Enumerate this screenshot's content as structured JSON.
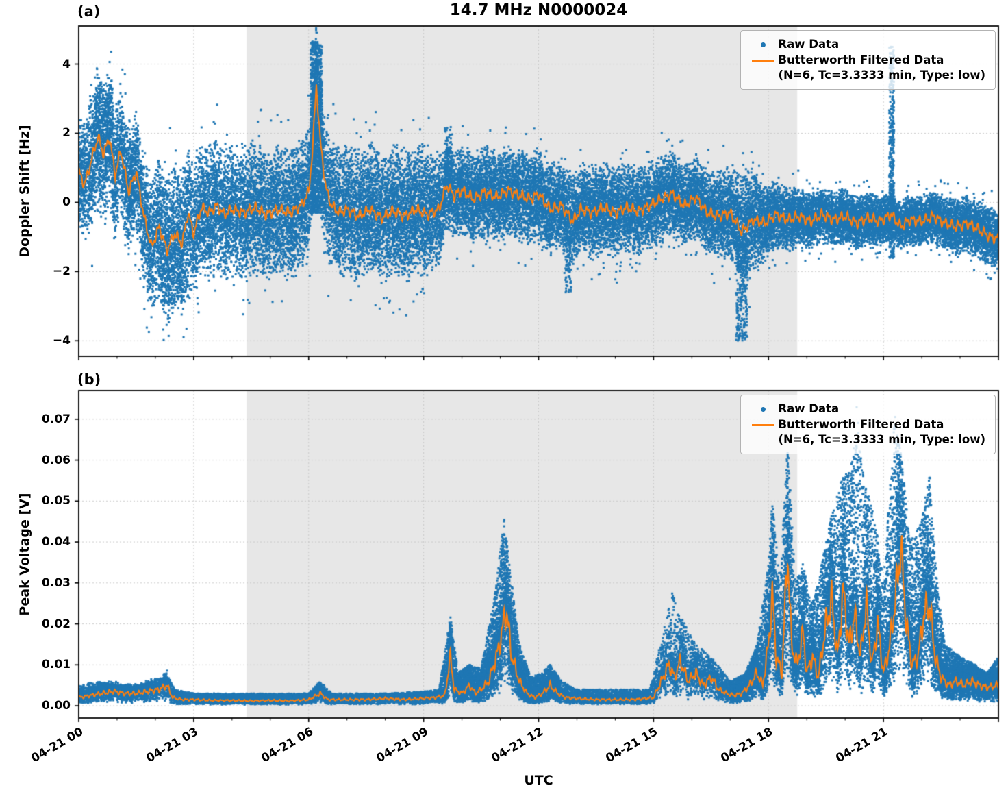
{
  "figure": {
    "panel_a_label": "(a)",
    "panel_b_label": "(b)",
    "legend": {
      "raw_label": "Raw Data",
      "filtered_label": "Butterworth Filtered Data",
      "filtered_sublabel": "(N=6, Tc=3.3333 min, Type: low)"
    },
    "colors": {
      "raw": "#1f77b4",
      "filtered": "#ff7f0e",
      "shade": "#e7e7e7",
      "frame": "#000000"
    }
  },
  "chart_data": [
    {
      "panel": "a",
      "type": "scatter",
      "title": "14.7 MHz N0000024",
      "ylabel": "Doppler Shift [Hz]",
      "ylim": [
        -4.45,
        5.1
      ],
      "yticks": [
        -4,
        -2,
        0,
        2,
        4
      ],
      "ytick_labels": [
        "−4",
        "−2",
        "0",
        "2",
        "4"
      ],
      "x_hours_lim": [
        0,
        24
      ],
      "xticks_hours": [
        0,
        3,
        6,
        9,
        12,
        15,
        18,
        21
      ],
      "xtick_labels": [],
      "shaded_hours": [
        4.38,
        18.75
      ],
      "legend_position": "upper right",
      "series_names": [
        "Raw Data",
        "Butterworth Filtered Data (N=6, Tc=3.3333 min, Type: low)"
      ],
      "filtered": {
        "x": [
          0,
          0.15,
          0.3,
          0.5,
          0.65,
          0.8,
          0.95,
          1.1,
          1.3,
          1.5,
          1.7,
          1.9,
          2.1,
          2.3,
          2.5,
          2.7,
          2.85,
          3.0,
          3.2,
          3.4,
          3.6,
          3.8,
          4.0,
          4.3,
          4.6,
          4.9,
          5.2,
          5.5,
          5.8,
          6.0,
          6.1,
          6.2,
          6.3,
          6.45,
          6.6,
          6.8,
          7.0,
          7.3,
          7.6,
          7.9,
          8.2,
          8.5,
          8.8,
          9.1,
          9.4,
          9.6,
          9.8,
          10.0,
          10.3,
          10.6,
          10.9,
          11.2,
          11.5,
          11.8,
          12.0,
          12.3,
          12.6,
          12.9,
          13.1,
          13.4,
          13.7,
          14.0,
          14.3,
          14.6,
          14.9,
          15.2,
          15.5,
          15.8,
          16.1,
          16.4,
          16.7,
          17.0,
          17.3,
          17.6,
          17.9,
          18.2,
          18.5,
          18.8,
          19.1,
          19.4,
          19.7,
          20.0,
          20.3,
          20.6,
          20.9,
          21.2,
          21.45,
          21.7,
          22.0,
          22.3,
          22.6,
          22.9,
          23.2,
          23.5,
          23.8,
          24.0
        ],
        "y": [
          0.9,
          0.5,
          1.1,
          1.9,
          1.4,
          1.9,
          0.8,
          1.5,
          0.3,
          0.9,
          -0.4,
          -1.3,
          -0.7,
          -1.4,
          -0.9,
          -1.2,
          -0.3,
          -0.9,
          -0.15,
          -0.3,
          -0.1,
          -0.35,
          -0.2,
          -0.3,
          -0.15,
          -0.35,
          -0.2,
          -0.3,
          -0.1,
          0.3,
          1.5,
          3.4,
          1.8,
          0.4,
          -0.1,
          -0.3,
          -0.2,
          -0.4,
          -0.2,
          -0.45,
          -0.25,
          -0.4,
          -0.2,
          -0.35,
          -0.2,
          0.5,
          0.2,
          0.35,
          0.1,
          0.3,
          0.15,
          0.35,
          0.2,
          0.1,
          0.25,
          -0.2,
          -0.1,
          -0.55,
          -0.2,
          -0.3,
          -0.15,
          -0.3,
          -0.15,
          -0.25,
          -0.1,
          0.1,
          0.25,
          -0.1,
          0.15,
          -0.3,
          -0.4,
          -0.3,
          -0.85,
          -0.5,
          -0.6,
          -0.35,
          -0.5,
          -0.4,
          -0.55,
          -0.35,
          -0.5,
          -0.4,
          -0.6,
          -0.45,
          -0.55,
          -0.35,
          -0.7,
          -0.5,
          -0.55,
          -0.4,
          -0.6,
          -0.7,
          -0.6,
          -0.8,
          -1.0,
          -1.05
        ]
      },
      "raw_envelope": {
        "x": [
          0,
          0.5,
          1,
          1.5,
          2,
          2.5,
          3,
          4,
          5,
          6,
          6.2,
          7,
          8,
          9,
          9.6,
          10,
          11,
          12,
          13,
          14,
          15,
          16,
          17,
          17.3,
          18,
          19,
          20,
          21,
          22,
          23,
          24
        ],
        "spread": [
          1.1,
          1.5,
          1.3,
          1.2,
          1.4,
          1.5,
          1.3,
          1.3,
          1.3,
          1.3,
          1.3,
          1.3,
          1.3,
          1.3,
          0.9,
          0.9,
          0.9,
          0.9,
          0.9,
          0.9,
          0.85,
          0.8,
          0.9,
          1.2,
          0.7,
          0.55,
          0.55,
          0.5,
          0.5,
          0.55,
          0.6
        ]
      },
      "raw_columns": [
        [
          0.4,
          0.9,
          1.5,
          3.4,
          200
        ],
        [
          2.1,
          2.9,
          -2.9,
          -1.8,
          150
        ],
        [
          6.05,
          6.35,
          -0.3,
          4.65,
          1200
        ],
        [
          9.55,
          9.75,
          0.5,
          2.2,
          100
        ],
        [
          12.7,
          12.85,
          -2.6,
          -1.0,
          80
        ],
        [
          17.15,
          17.45,
          -4.0,
          -1.0,
          250
        ],
        [
          21.15,
          21.28,
          -1.6,
          4.5,
          400
        ]
      ]
    },
    {
      "panel": "b",
      "type": "scatter",
      "xlabel": "UTC",
      "ylabel": "Peak Voltage [V]",
      "ylim": [
        -0.003,
        0.077
      ],
      "yticks": [
        0,
        0.01,
        0.02,
        0.03,
        0.04,
        0.05,
        0.06,
        0.07
      ],
      "ytick_labels": [
        "0.00",
        "0.01",
        "0.02",
        "0.03",
        "0.04",
        "0.05",
        "0.06",
        "0.07"
      ],
      "x_hours_lim": [
        0,
        24
      ],
      "xticks_hours": [
        0,
        3,
        6,
        9,
        12,
        15,
        18,
        21
      ],
      "xtick_labels": [
        "04-21 00",
        "04-21 03",
        "04-21 06",
        "04-21 09",
        "04-21 12",
        "04-21 15",
        "04-21 18",
        "04-21 21"
      ],
      "shaded_hours": [
        4.38,
        18.75
      ],
      "legend_position": "upper right",
      "series_names": [
        "Raw Data",
        "Butterworth Filtered Data (N=6, Tc=3.3333 min, Type: low)"
      ],
      "filtered": {
        "x": [
          0,
          0.3,
          0.6,
          0.9,
          1.2,
          1.5,
          1.8,
          2.1,
          2.3,
          2.45,
          2.7,
          3.0,
          3.5,
          4.0,
          4.5,
          5.0,
          5.5,
          6.0,
          6.3,
          6.5,
          7.0,
          7.5,
          8.0,
          8.5,
          9.0,
          9.3,
          9.55,
          9.7,
          9.8,
          10.0,
          10.2,
          10.35,
          10.5,
          10.7,
          10.9,
          11.05,
          11.15,
          11.3,
          11.5,
          11.7,
          11.9,
          12.1,
          12.3,
          12.5,
          12.7,
          13.0,
          13.5,
          14.0,
          14.5,
          15.0,
          15.2,
          15.4,
          15.55,
          15.7,
          15.9,
          16.1,
          16.3,
          16.5,
          16.7,
          16.9,
          17.1,
          17.3,
          17.5,
          17.7,
          17.85,
          18.0,
          18.1,
          18.2,
          18.35,
          18.5,
          18.6,
          18.75,
          18.9,
          19.0,
          19.15,
          19.3,
          19.5,
          19.65,
          19.8,
          19.95,
          20.1,
          20.25,
          20.4,
          20.55,
          20.7,
          20.85,
          21.0,
          21.15,
          21.3,
          21.45,
          21.6,
          21.75,
          21.9,
          22.05,
          22.2,
          22.35,
          22.5,
          22.7,
          22.9,
          23.1,
          23.3,
          23.5,
          23.7,
          24.0
        ],
        "y": [
          0.002,
          0.0025,
          0.003,
          0.0035,
          0.003,
          0.003,
          0.0035,
          0.004,
          0.005,
          0.002,
          0.0015,
          0.0015,
          0.0013,
          0.0013,
          0.0012,
          0.0013,
          0.0012,
          0.0015,
          0.003,
          0.0015,
          0.0015,
          0.0015,
          0.0018,
          0.0015,
          0.0018,
          0.002,
          0.0025,
          0.012,
          0.004,
          0.003,
          0.005,
          0.003,
          0.004,
          0.006,
          0.012,
          0.018,
          0.024,
          0.012,
          0.006,
          0.003,
          0.002,
          0.003,
          0.005,
          0.003,
          0.002,
          0.0018,
          0.0015,
          0.0015,
          0.0015,
          0.002,
          0.006,
          0.01,
          0.007,
          0.011,
          0.006,
          0.008,
          0.005,
          0.007,
          0.004,
          0.003,
          0.0025,
          0.003,
          0.005,
          0.008,
          0.005,
          0.015,
          0.027,
          0.012,
          0.008,
          0.038,
          0.015,
          0.01,
          0.018,
          0.008,
          0.012,
          0.007,
          0.02,
          0.026,
          0.012,
          0.028,
          0.015,
          0.022,
          0.012,
          0.025,
          0.01,
          0.02,
          0.008,
          0.014,
          0.025,
          0.039,
          0.02,
          0.01,
          0.012,
          0.022,
          0.025,
          0.012,
          0.007,
          0.005,
          0.006,
          0.005,
          0.006,
          0.005,
          0.0045,
          0.005
        ]
      },
      "raw_envelope": {
        "x": [
          0,
          0.5,
          1,
          1.5,
          2,
          2.3,
          2.5,
          3,
          4,
          5,
          6,
          6.3,
          6.6,
          7,
          8,
          9,
          9.4,
          9.7,
          9.9,
          10.2,
          10.5,
          10.9,
          11.1,
          11.3,
          11.5,
          11.8,
          12.1,
          12.3,
          12.6,
          13,
          14,
          14.9,
          15.3,
          15.5,
          15.7,
          16.1,
          16.5,
          17,
          17.4,
          17.7,
          18.0,
          18.1,
          18.3,
          18.5,
          18.7,
          18.9,
          19.1,
          19.3,
          19.6,
          19.9,
          20.2,
          20.3,
          20.5,
          20.8,
          21.0,
          21.3,
          21.5,
          21.7,
          22.0,
          22.2,
          22.4,
          22.6,
          23.0,
          23.4,
          23.7,
          24
        ],
        "hi": [
          0.005,
          0.006,
          0.005,
          0.005,
          0.006,
          0.008,
          0.004,
          0.003,
          0.003,
          0.003,
          0.003,
          0.006,
          0.003,
          0.003,
          0.003,
          0.0035,
          0.004,
          0.022,
          0.008,
          0.01,
          0.009,
          0.03,
          0.046,
          0.03,
          0.015,
          0.007,
          0.008,
          0.01,
          0.006,
          0.004,
          0.004,
          0.004,
          0.02,
          0.028,
          0.022,
          0.015,
          0.012,
          0.006,
          0.008,
          0.015,
          0.035,
          0.05,
          0.03,
          0.065,
          0.03,
          0.035,
          0.025,
          0.03,
          0.045,
          0.055,
          0.06,
          0.073,
          0.055,
          0.045,
          0.03,
          0.072,
          0.058,
          0.04,
          0.045,
          0.058,
          0.03,
          0.015,
          0.012,
          0.01,
          0.008,
          0.012
        ]
      }
    }
  ]
}
